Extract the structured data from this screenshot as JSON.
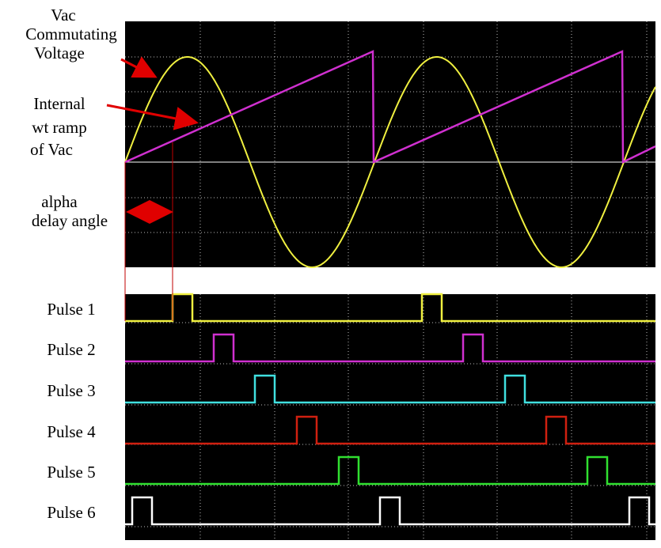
{
  "labels": {
    "vac": [
      "Vac",
      "Commutating",
      "Voltage"
    ],
    "ramp": [
      "Internal",
      "wt ramp",
      "of Vac"
    ],
    "alpha": [
      "alpha",
      "delay angle"
    ]
  },
  "pulses": [
    "Pulse 1",
    "Pulse 2",
    "Pulse 3",
    "Pulse 4",
    "Pulse 5",
    "Pulse 6"
  ]
}
